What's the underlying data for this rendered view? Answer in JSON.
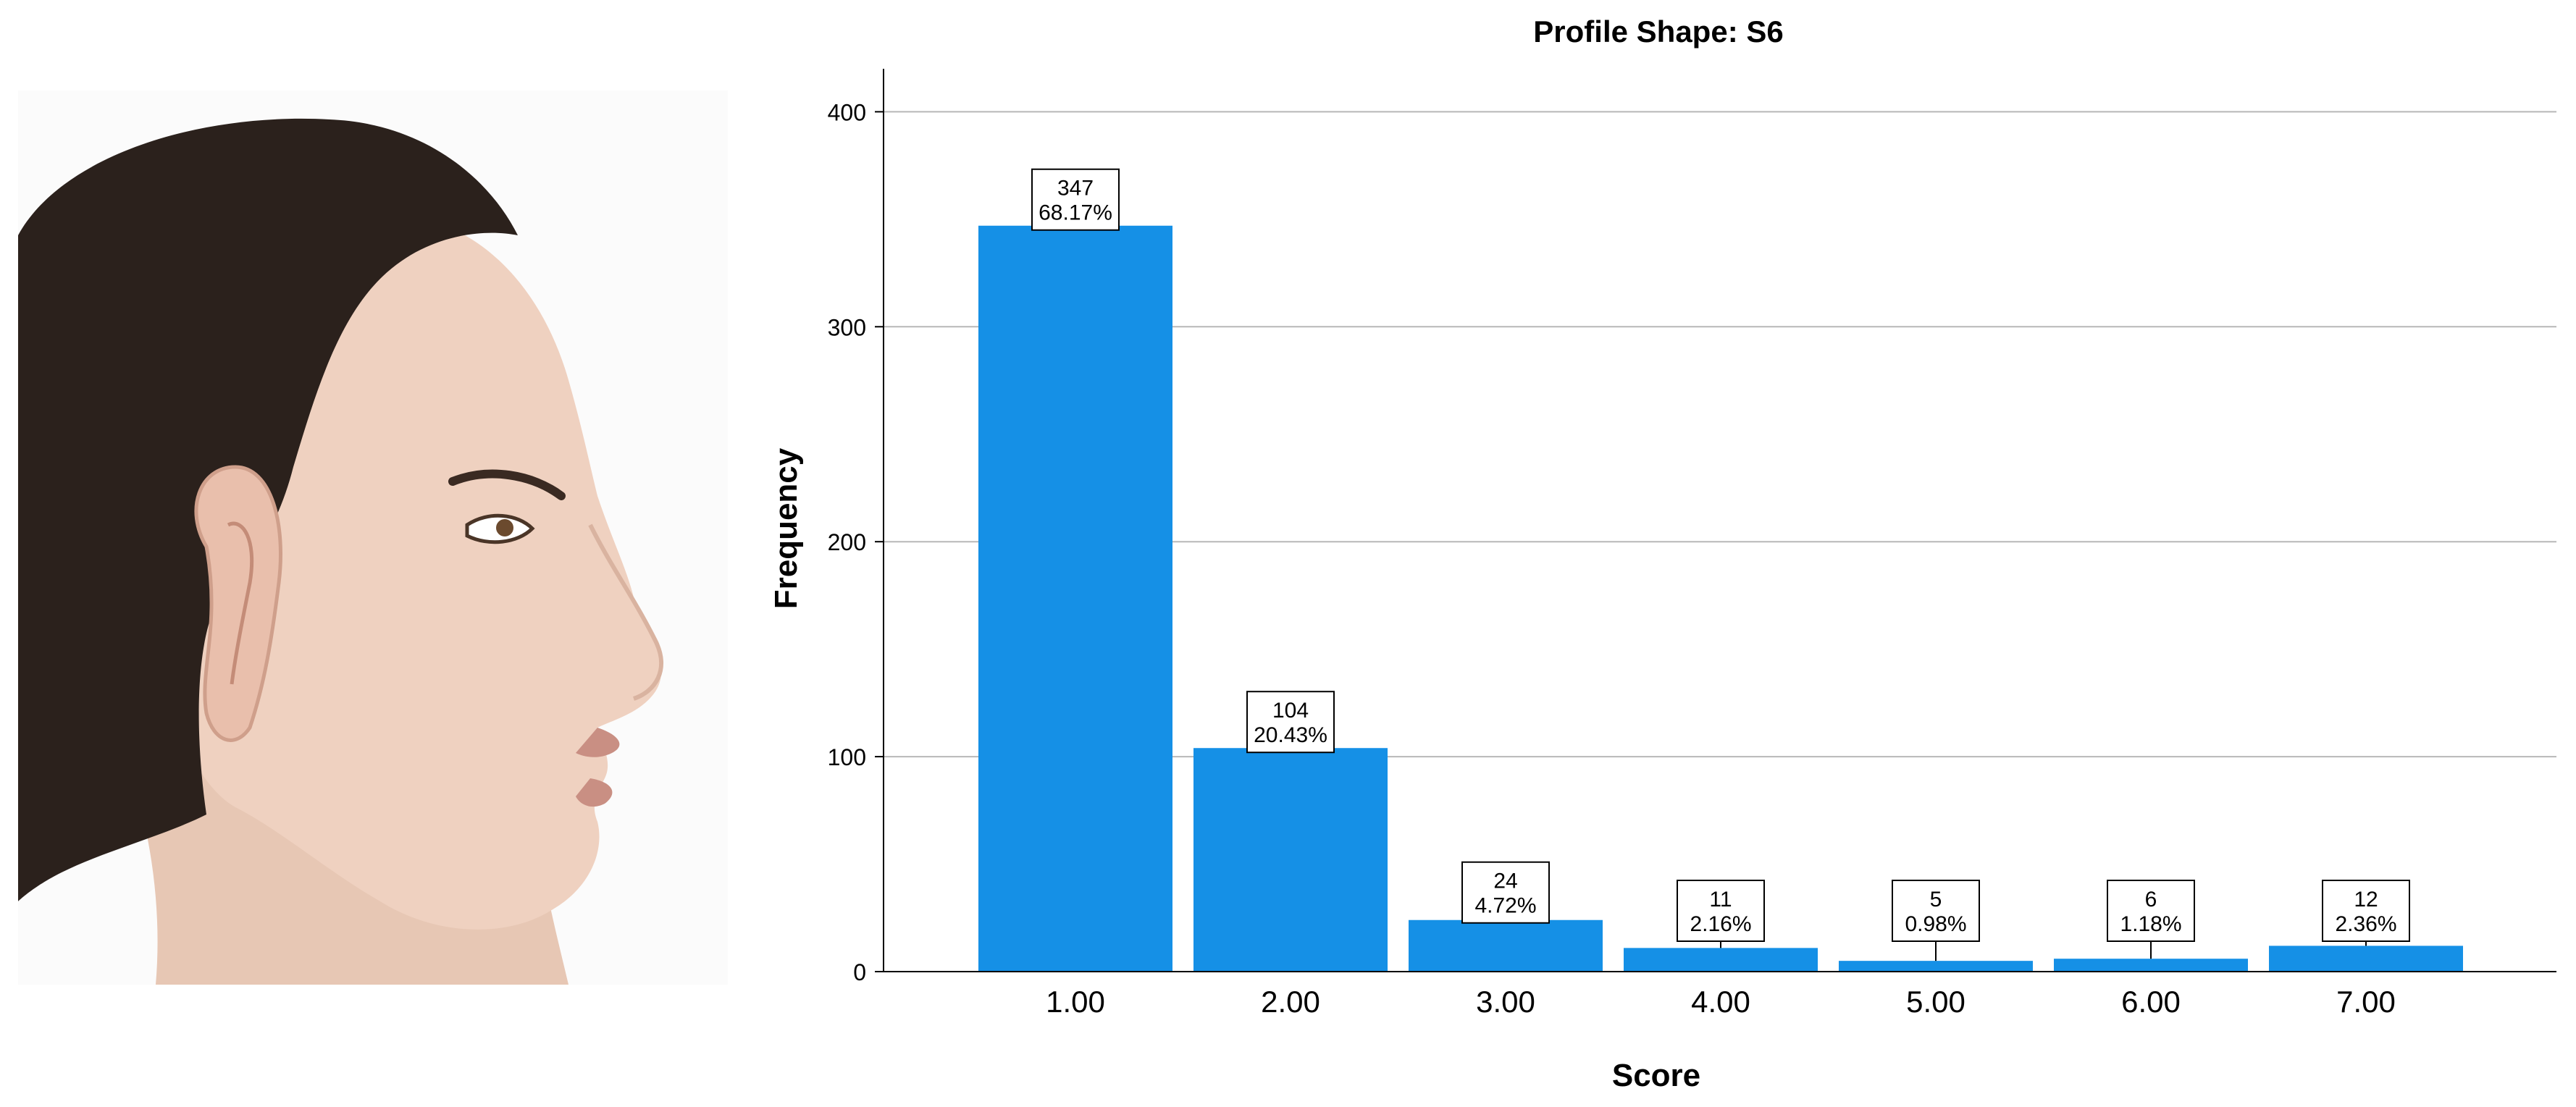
{
  "chart_data": {
    "type": "bar",
    "title": "Profile Shape: S6",
    "xlabel": "Score",
    "ylabel": "Frequency",
    "categories": [
      "1.00",
      "2.00",
      "3.00",
      "4.00",
      "5.00",
      "6.00",
      "7.00"
    ],
    "values": [
      347,
      104,
      24,
      11,
      5,
      6,
      12
    ],
    "percent_labels": [
      "68.17%",
      "20.43%",
      "4.72%",
      "2.16%",
      "0.98%",
      "1.18%",
      "2.36%"
    ],
    "count_labels": [
      "347",
      "104",
      "24",
      "11",
      "5",
      "6",
      "12"
    ],
    "yticks": [
      "0",
      "100",
      "200",
      "300",
      "400"
    ],
    "ytick_values": [
      0,
      100,
      200,
      300,
      400
    ],
    "ylim": [
      0,
      420
    ],
    "grid": true,
    "bar_color": "#1590e6"
  },
  "image": {
    "description_icon": "face-profile-photo"
  }
}
